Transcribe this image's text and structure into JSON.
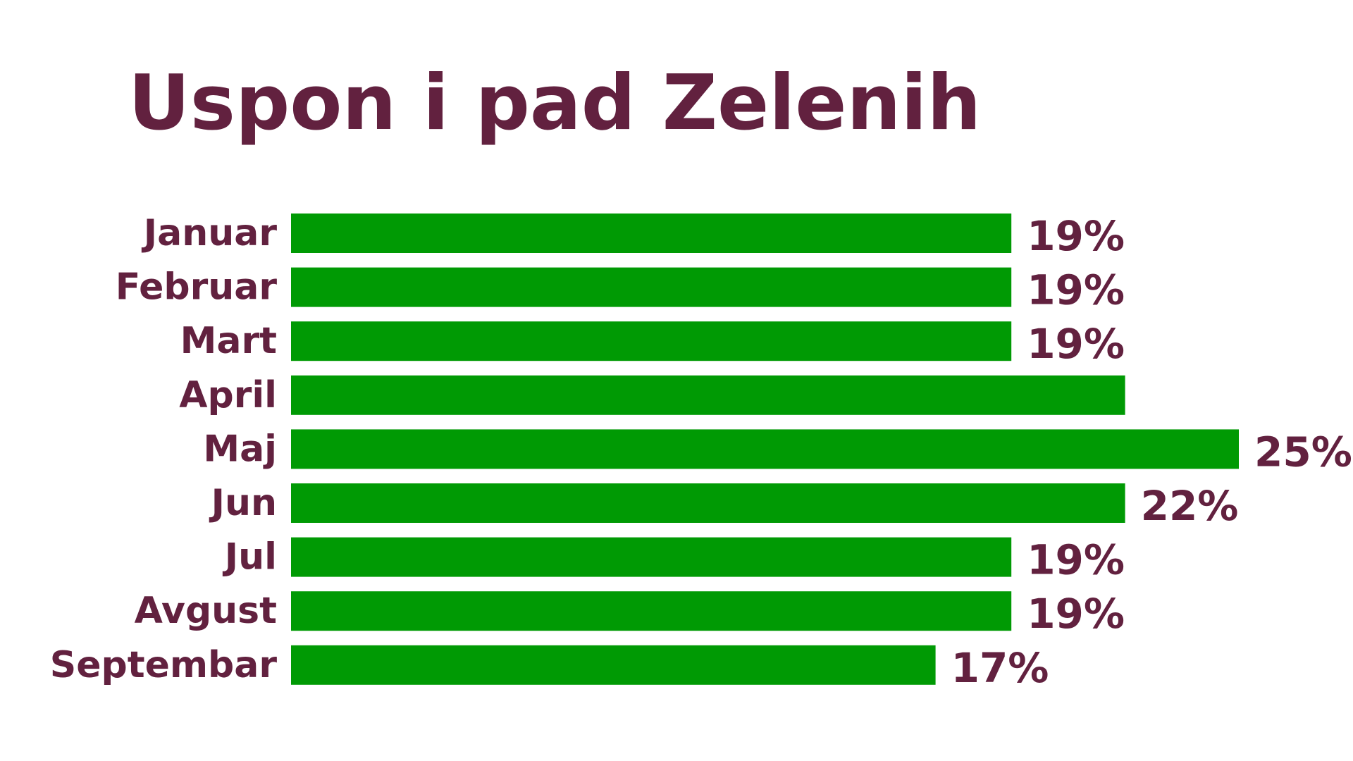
{
  "chart_data": {
    "type": "bar",
    "orientation": "horizontal",
    "title": "Uspon i pad Zelenih",
    "categories": [
      "Januar",
      "Februar",
      "Mart",
      "April",
      "Maj",
      "Jun",
      "Jul",
      "Avgust",
      "Septembar"
    ],
    "values": [
      19,
      19,
      19,
      22,
      25,
      22,
      19,
      19,
      17
    ],
    "value_labels": [
      "19%",
      "19%",
      "19%",
      "",
      "25%",
      "22%",
      "19%",
      "19%",
      "17%"
    ],
    "unit": "%",
    "xlim": [
      0,
      25
    ],
    "grid": false,
    "legend": "none",
    "colors": {
      "bar": "#009a04",
      "text": "#62213f"
    }
  }
}
